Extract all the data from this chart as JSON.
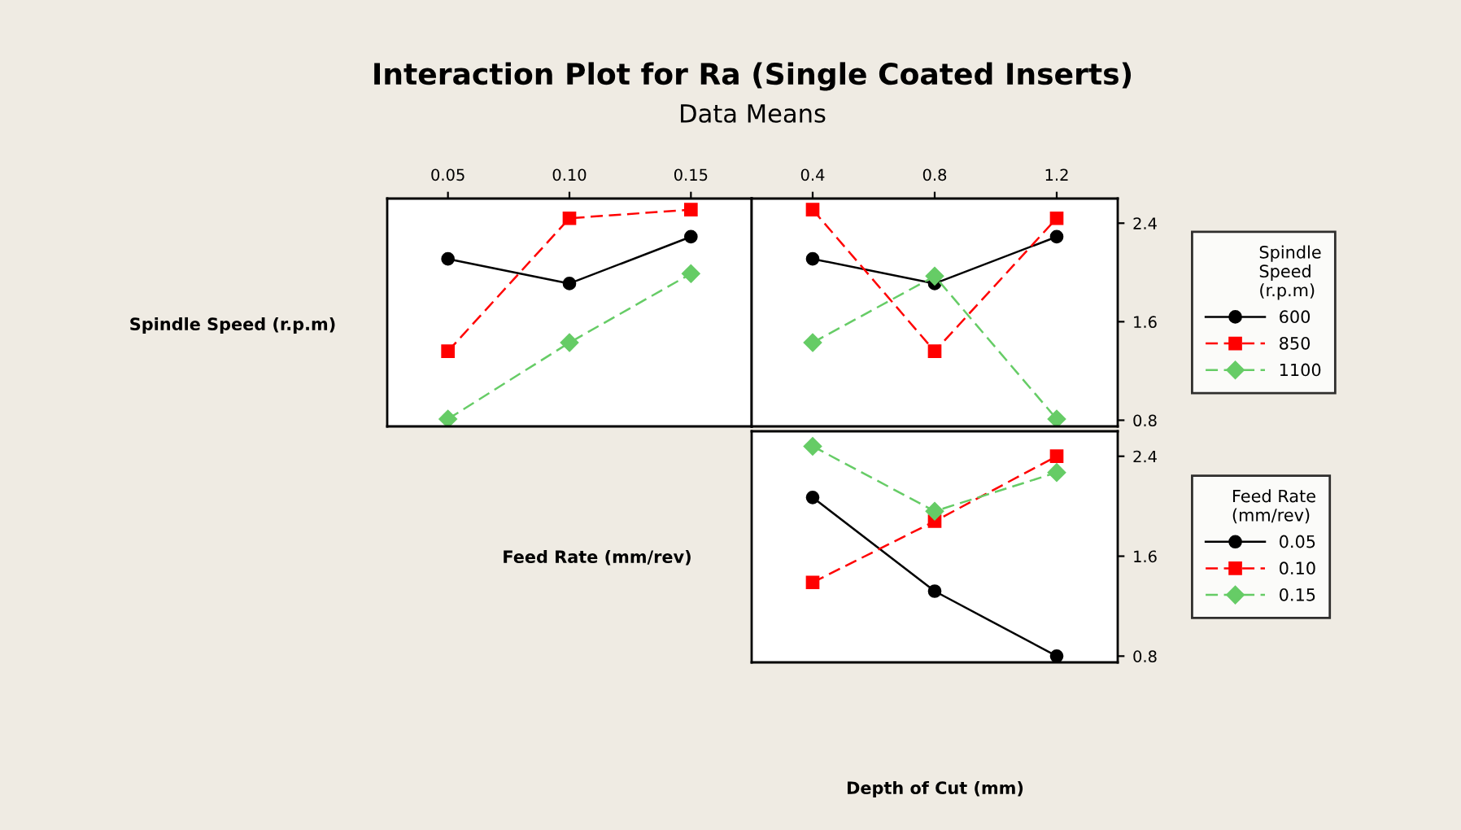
{
  "chart_data": [
    {
      "type": "line",
      "title": "Interaction Plot for Ra (Single Coated Inserts)",
      "subtitle": "Data Means",
      "ylabel": "Spindle Speed (r.p.m)",
      "categories": [
        "0.05",
        "0.10",
        "0.15"
      ],
      "ylim": [
        0.75,
        2.6
      ],
      "yticks": [
        0.8,
        1.6,
        2.4
      ],
      "tick_labels": "x",
      "legend": false,
      "grid": false,
      "series": [
        {
          "color": "#000000",
          "marker": "circle",
          "line_style": "solid",
          "values": [
            2.11,
            1.91,
            2.29
          ]
        },
        {
          "color": "#ff0000",
          "marker": "square",
          "line_style": "dashed",
          "values": [
            1.36,
            2.44,
            2.51
          ]
        },
        {
          "color": "#66cc66",
          "marker": "diamond",
          "line_style": "dashed",
          "values": [
            0.81,
            1.43,
            1.99
          ]
        }
      ]
    },
    {
      "type": "line",
      "categories": [
        "0.4",
        "0.8",
        "1.2"
      ],
      "ylim": [
        0.75,
        2.6
      ],
      "yticks": [
        0.8,
        1.6,
        2.4
      ],
      "legend": "right",
      "legend_title": "Spindle\nSpeed\n(r.p.m)",
      "grid": false,
      "series": [
        {
          "name": "600",
          "color": "#000000",
          "marker": "circle",
          "line_style": "solid",
          "values": [
            2.11,
            1.91,
            2.29
          ]
        },
        {
          "name": "850",
          "color": "#ff0000",
          "marker": "square",
          "line_style": "dashed",
          "values": [
            2.51,
            1.36,
            2.44
          ]
        },
        {
          "name": "1100",
          "color": "#66cc66",
          "marker": "diamond",
          "line_style": "dashed",
          "values": [
            1.43,
            1.97,
            0.81
          ]
        }
      ]
    },
    {
      "type": "line",
      "ylabel": "Feed Rate (mm/rev)",
      "xlabel": "Depth of Cut (mm)",
      "categories": [
        "0.4",
        "0.8",
        "1.2"
      ],
      "ylim": [
        0.75,
        2.6
      ],
      "yticks": [
        0.8,
        1.6,
        2.4
      ],
      "tick_labels": "y",
      "legend": "right",
      "legend_title": "Feed Rate\n(mm/rev)",
      "grid": false,
      "series": [
        {
          "name": "0.05",
          "color": "#000000",
          "marker": "circle",
          "line_style": "solid",
          "values": [
            2.07,
            1.32,
            0.8
          ]
        },
        {
          "name": "0.10",
          "color": "#ff0000",
          "marker": "square",
          "line_style": "dashed",
          "values": [
            1.39,
            1.88,
            2.4
          ]
        },
        {
          "name": "0.15",
          "color": "#66cc66",
          "marker": "diamond",
          "line_style": "dashed",
          "values": [
            2.48,
            1.96,
            2.27
          ]
        }
      ]
    }
  ]
}
